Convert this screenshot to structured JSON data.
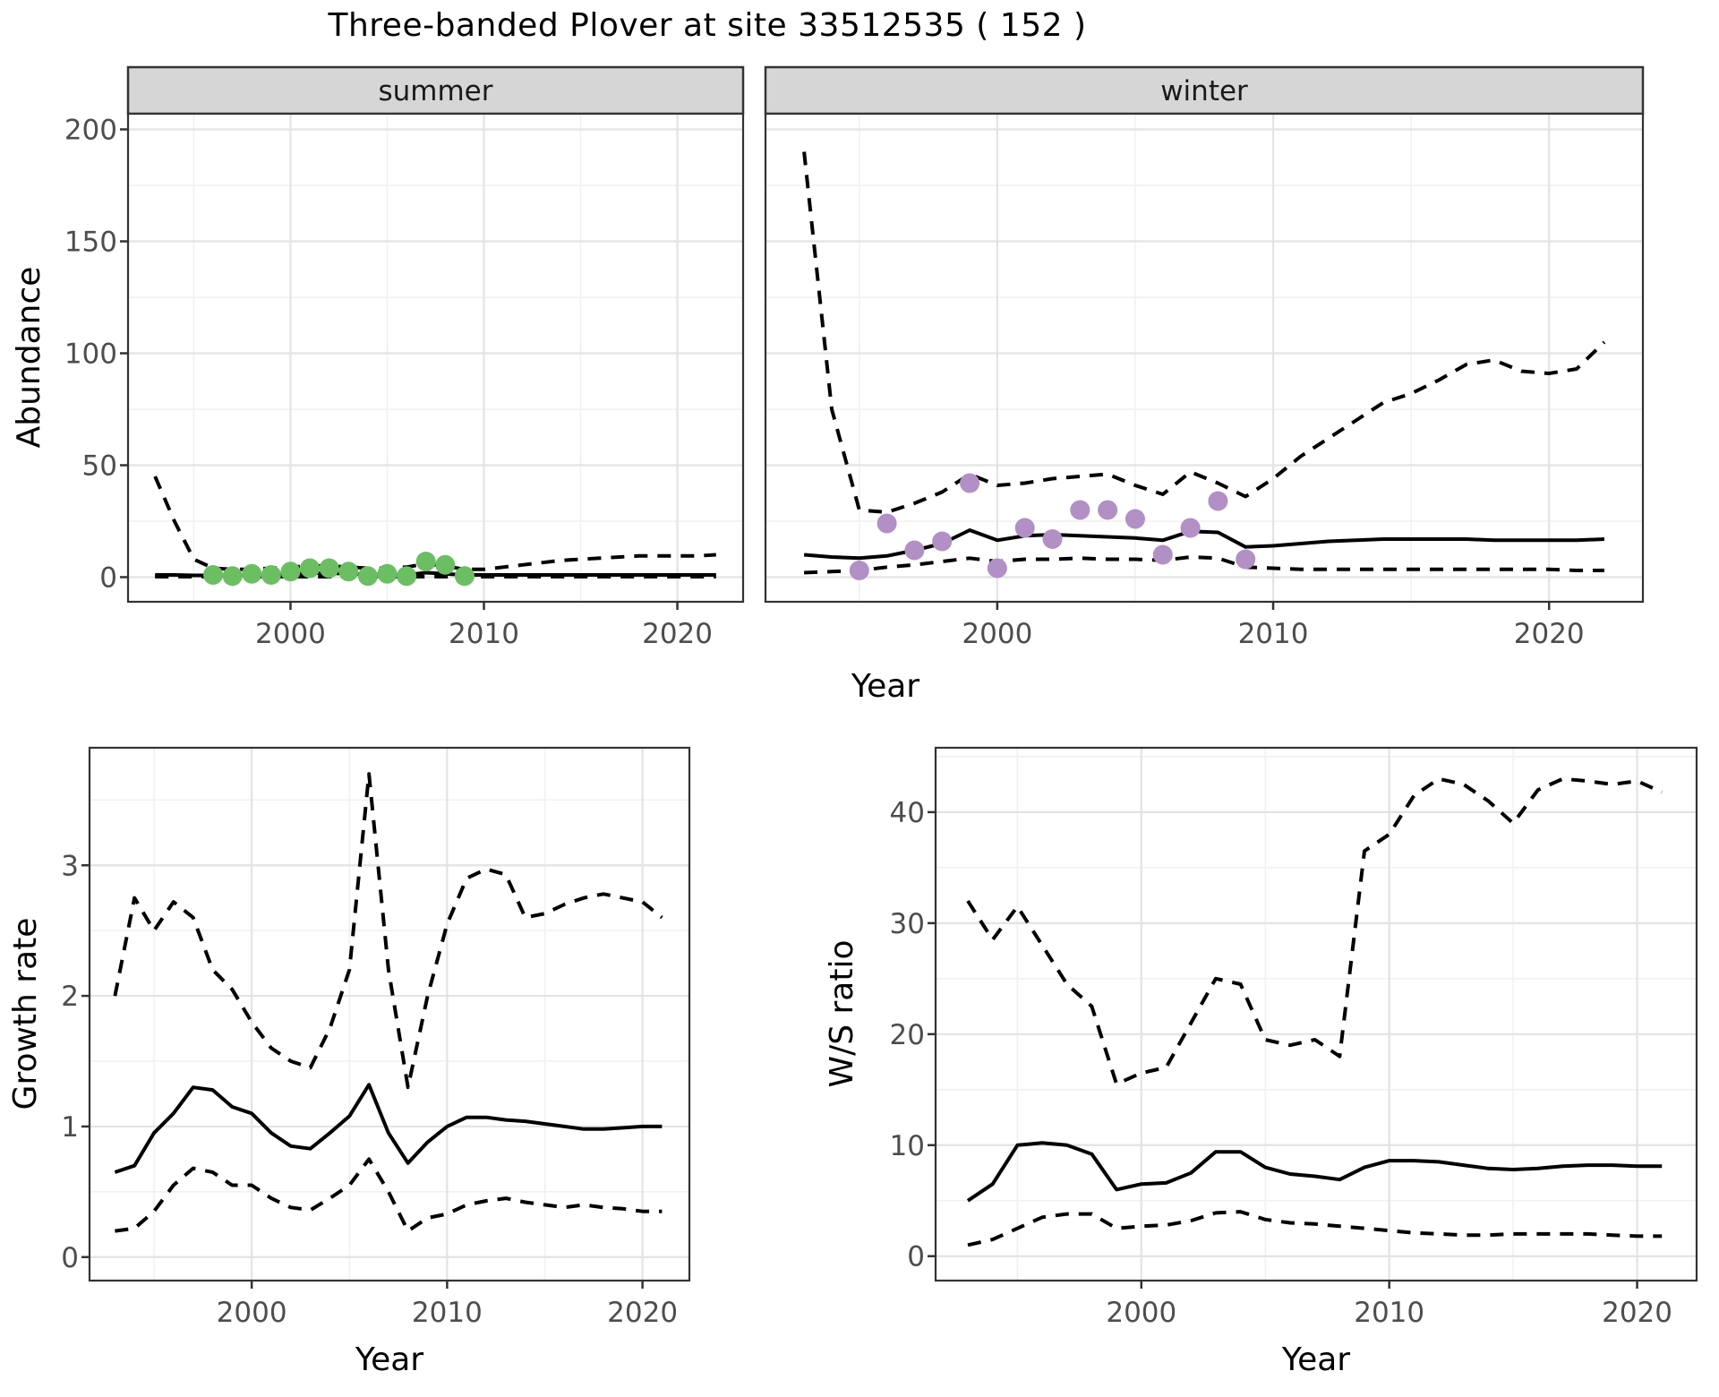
{
  "title": "Three-banded Plover at site 33512535 ( 152 )",
  "colors": {
    "summer_points": "#6CBE63",
    "winter_points": "#B28FC4",
    "line": "#000000",
    "panel_border": "#333333",
    "strip_bg": "#D6D6D6",
    "strip_text": "#1A1A1A",
    "grid_major": "#E3E3E3",
    "grid_minor": "#F1F1F1",
    "tick_label": "#4D4D4D",
    "axis_title": "#000000",
    "background": "#FFFFFF"
  },
  "chart_data": [
    {
      "type": "line",
      "ylabel": "Abundance",
      "xlabel": "Year",
      "xticks": [
        2000,
        2010,
        2020
      ],
      "yticks": [
        0,
        50,
        100,
        150,
        200
      ],
      "xlim": [
        1991.6,
        2023.4
      ],
      "ylim": [
        -11,
        207
      ],
      "grid": true,
      "legend": "none",
      "years": [
        1993,
        1994,
        1995,
        1996,
        1997,
        1998,
        1999,
        2000,
        2001,
        2002,
        2003,
        2004,
        2005,
        2006,
        2007,
        2008,
        2009,
        2010,
        2011,
        2012,
        2013,
        2014,
        2015,
        2016,
        2017,
        2018,
        2019,
        2020,
        2021,
        2022
      ],
      "facets": [
        {
          "label": "summer",
          "series": [
            {
              "name": "median",
              "style": "solid",
              "values": [
                1,
                1,
                0.8,
                0.8,
                0.8,
                1,
                1.2,
                1.5,
                1.8,
                1.8,
                1.5,
                1.2,
                1.2,
                1,
                2,
                1.5,
                1,
                1,
                1,
                1,
                1,
                1,
                1,
                1,
                1,
                1,
                1,
                1,
                1,
                1
              ]
            },
            {
              "name": "lower-ci",
              "style": "dashed",
              "values": [
                0.2,
                0.2,
                0.2,
                0.2,
                0.2,
                0.2,
                0.2,
                0.2,
                0.2,
                0.2,
                0.2,
                0.2,
                0.2,
                0.2,
                0.2,
                0.2,
                0.2,
                0.2,
                0.2,
                0.2,
                0.2,
                0.2,
                0.2,
                0.2,
                0.2,
                0.2,
                0.2,
                0.2,
                0.2,
                0.2
              ]
            },
            {
              "name": "upper-ci",
              "style": "dashed",
              "values": [
                45,
                25,
                8,
                4,
                3.5,
                3.5,
                4,
                4.5,
                5,
                5,
                4.5,
                4,
                4,
                4.5,
                6,
                5,
                3.5,
                3.5,
                4.5,
                5.5,
                6.5,
                7.5,
                8,
                8.5,
                9,
                9.5,
                9.5,
                9.5,
                9.5,
                10
              ]
            },
            {
              "name": "observations",
              "style": "points",
              "color": "#6CBE63",
              "points": [
                [
                  1996,
                  1
                ],
                [
                  1997,
                  0.5
                ],
                [
                  1998,
                  1.5
                ],
                [
                  1999,
                  1
                ],
                [
                  2000,
                  2.5
                ],
                [
                  2001,
                  4
                ],
                [
                  2002,
                  4
                ],
                [
                  2003,
                  2.5
                ],
                [
                  2004,
                  0.5
                ],
                [
                  2005,
                  1.5
                ],
                [
                  2006,
                  0.5
                ],
                [
                  2007,
                  7
                ],
                [
                  2008,
                  5.5
                ],
                [
                  2009,
                  0.5
                ]
              ]
            }
          ]
        },
        {
          "label": "winter",
          "series": [
            {
              "name": "median",
              "style": "solid",
              "values": [
                10,
                9,
                8.5,
                9.5,
                12,
                15,
                21,
                16.5,
                18.5,
                19,
                18.5,
                18,
                17.5,
                16.5,
                20.5,
                20,
                13.5,
                14,
                15,
                16,
                16.5,
                17,
                17,
                17,
                17,
                16.5,
                16.5,
                16.5,
                16.5,
                17
              ]
            },
            {
              "name": "lower-ci",
              "style": "dashed",
              "values": [
                2,
                2.5,
                3,
                4.5,
                5.5,
                7,
                8.5,
                7,
                8,
                8,
                8.5,
                8,
                8,
                7.5,
                9,
                8.5,
                4.5,
                4,
                3.5,
                3.5,
                3.5,
                3.5,
                3.5,
                3.5,
                3.5,
                3.5,
                3.5,
                3.5,
                3,
                3
              ]
            },
            {
              "name": "upper-ci",
              "style": "dashed",
              "values": [
                190,
                75,
                30,
                29,
                33,
                38,
                46,
                41,
                42,
                44,
                45,
                46,
                41,
                37,
                47,
                42,
                36,
                44,
                54,
                62,
                70,
                78,
                82,
                88,
                95,
                97,
                92,
                91,
                93,
                105
              ]
            },
            {
              "name": "observations",
              "style": "points",
              "color": "#B28FC4",
              "points": [
                [
                  1995,
                  3
                ],
                [
                  1996,
                  24
                ],
                [
                  1997,
                  12
                ],
                [
                  1998,
                  16
                ],
                [
                  1999,
                  42
                ],
                [
                  2000,
                  4
                ],
                [
                  2001,
                  22
                ],
                [
                  2002,
                  17
                ],
                [
                  2003,
                  30
                ],
                [
                  2004,
                  30
                ],
                [
                  2005,
                  26
                ],
                [
                  2006,
                  10
                ],
                [
                  2007,
                  22
                ],
                [
                  2008,
                  34
                ],
                [
                  2009,
                  8
                ]
              ]
            }
          ]
        }
      ]
    },
    {
      "type": "line",
      "ylabel": "Growth rate",
      "xlabel": "Year",
      "xticks": [
        2000,
        2010,
        2020
      ],
      "yticks": [
        0,
        1,
        2,
        3
      ],
      "xlim": [
        1991.7,
        2022.4
      ],
      "ylim": [
        -0.18,
        3.9
      ],
      "grid": true,
      "legend": "none",
      "years": [
        1993,
        1994,
        1995,
        1996,
        1997,
        1998,
        1999,
        2000,
        2001,
        2002,
        2003,
        2004,
        2005,
        2006,
        2007,
        2008,
        2009,
        2010,
        2011,
        2012,
        2013,
        2014,
        2015,
        2016,
        2017,
        2018,
        2019,
        2020,
        2021
      ],
      "series": [
        {
          "name": "median",
          "style": "solid",
          "values": [
            0.65,
            0.7,
            0.95,
            1.1,
            1.3,
            1.28,
            1.15,
            1.1,
            0.95,
            0.85,
            0.83,
            0.95,
            1.08,
            1.32,
            0.95,
            0.72,
            0.88,
            1.0,
            1.07,
            1.07,
            1.05,
            1.04,
            1.02,
            1.0,
            0.98,
            0.98,
            0.99,
            1.0,
            1.0
          ]
        },
        {
          "name": "lower-ci",
          "style": "dashed",
          "values": [
            0.2,
            0.22,
            0.35,
            0.55,
            0.68,
            0.65,
            0.55,
            0.55,
            0.45,
            0.38,
            0.36,
            0.45,
            0.55,
            0.75,
            0.5,
            0.2,
            0.3,
            0.33,
            0.4,
            0.43,
            0.45,
            0.42,
            0.4,
            0.38,
            0.4,
            0.38,
            0.37,
            0.35,
            0.35
          ]
        },
        {
          "name": "upper-ci",
          "style": "dashed",
          "values": [
            2.0,
            2.75,
            2.5,
            2.72,
            2.6,
            2.2,
            2.05,
            1.8,
            1.6,
            1.5,
            1.45,
            1.75,
            2.2,
            3.7,
            2.2,
            1.3,
            2.0,
            2.55,
            2.9,
            2.97,
            2.93,
            2.6,
            2.63,
            2.7,
            2.75,
            2.78,
            2.75,
            2.72,
            2.6
          ]
        }
      ]
    },
    {
      "type": "line",
      "ylabel": "W/S ratio",
      "xlabel": "Year",
      "xticks": [
        2000,
        2010,
        2020
      ],
      "yticks": [
        0,
        10,
        20,
        30,
        40
      ],
      "xlim": [
        1991.7,
        2022.4
      ],
      "ylim": [
        -2.2,
        45.8
      ],
      "grid": true,
      "legend": "none",
      "years": [
        1993,
        1994,
        1995,
        1996,
        1997,
        1998,
        1999,
        2000,
        2001,
        2002,
        2003,
        2004,
        2005,
        2006,
        2007,
        2008,
        2009,
        2010,
        2011,
        2012,
        2013,
        2014,
        2015,
        2016,
        2017,
        2018,
        2019,
        2020,
        2021
      ],
      "series": [
        {
          "name": "median",
          "style": "solid",
          "values": [
            5,
            6.5,
            10,
            10.2,
            10,
            9.2,
            6,
            6.5,
            6.6,
            7.5,
            9.4,
            9.4,
            8,
            7.4,
            7.2,
            6.9,
            8,
            8.6,
            8.6,
            8.5,
            8.2,
            7.9,
            7.8,
            7.9,
            8.1,
            8.2,
            8.2,
            8.1,
            8.1
          ]
        },
        {
          "name": "lower-ci",
          "style": "dashed",
          "values": [
            1,
            1.5,
            2.5,
            3.5,
            3.8,
            3.8,
            2.5,
            2.7,
            2.8,
            3.2,
            3.9,
            4,
            3.3,
            3,
            2.9,
            2.7,
            2.5,
            2.3,
            2.1,
            2,
            1.9,
            1.9,
            2,
            2,
            2,
            2,
            1.9,
            1.8,
            1.8
          ]
        },
        {
          "name": "upper-ci",
          "style": "dashed",
          "values": [
            32,
            28.5,
            31.5,
            28,
            24.5,
            22.5,
            15.5,
            16.5,
            17,
            21,
            25,
            24.5,
            19.5,
            19,
            19.5,
            18,
            36.5,
            38,
            41.5,
            43,
            42.5,
            41,
            39,
            42,
            43,
            42.8,
            42.5,
            42.8,
            41.8
          ]
        }
      ]
    }
  ]
}
